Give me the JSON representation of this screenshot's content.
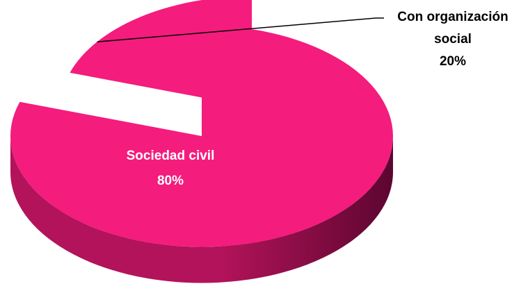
{
  "chart_data": {
    "type": "pie",
    "style": "3d-exploded",
    "slices": [
      {
        "label": "Sociedad civil",
        "value": 80,
        "value_label": "80%",
        "label_position": "inside"
      },
      {
        "label_lines": [
          "Con organización",
          "social"
        ],
        "value": 20,
        "value_label": "20%",
        "exploded": true,
        "label_position": "outside"
      }
    ],
    "legend": "none"
  },
  "colors": {
    "slice_top": "#f41c7c",
    "slice_side_light": "#b3135a",
    "slice_side_dark": "#5c0630",
    "inside_label": "#ffffff",
    "outside_label": "#000000",
    "leader_line": "#000000"
  }
}
